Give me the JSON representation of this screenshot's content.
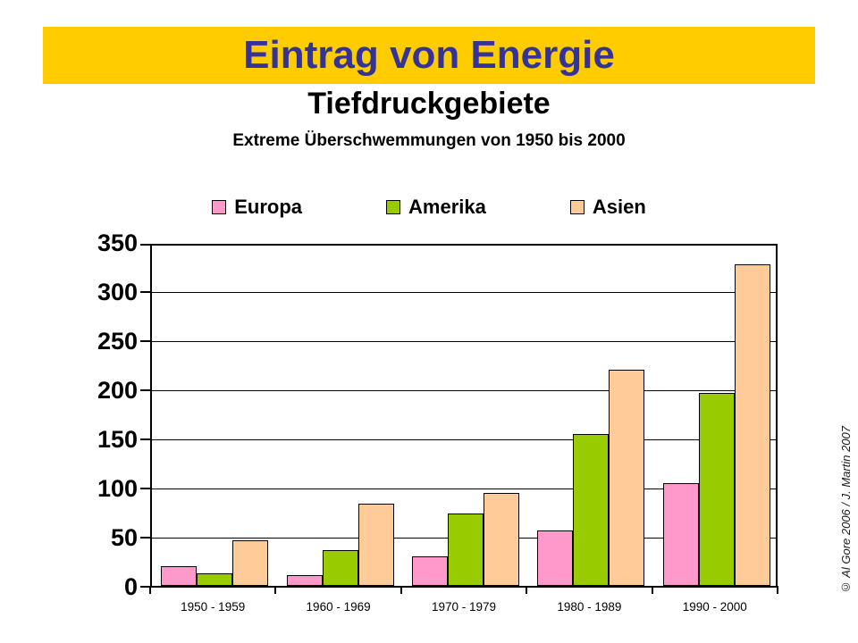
{
  "banner": {
    "title": "Eintrag von Energie",
    "bg_color": "#FFCC00",
    "text_color": "#333399"
  },
  "subtitle": "Tiefdruckgebiete",
  "chart_heading": "Extreme Überschwemmungen von 1950 bis 2000",
  "copyright": "© Al Gore 2006 /  J. Martin 2007",
  "chart_data": {
    "type": "bar",
    "title": "Extreme Überschwemmungen von 1950 bis 2000",
    "categories": [
      "1950 - 1959",
      "1960 - 1969",
      "1970 - 1979",
      "1980 - 1989",
      "1990 - 2000"
    ],
    "series": [
      {
        "name": "Europa",
        "color": "#FF99CC",
        "values": [
          20,
          11,
          30,
          56,
          105
        ]
      },
      {
        "name": "Amerika",
        "color": "#99CC00",
        "values": [
          13,
          36,
          74,
          155,
          196
        ]
      },
      {
        "name": "Asien",
        "color": "#FFCC99",
        "values": [
          46,
          84,
          95,
          220,
          327
        ]
      }
    ],
    "ylim": [
      0,
      350
    ],
    "yticks": [
      0,
      50,
      100,
      150,
      200,
      250,
      300,
      350
    ],
    "grid": true,
    "gridline_color": "#000000",
    "bar_border_color": "#000000",
    "legend_position": "top",
    "xlabel": "",
    "ylabel": ""
  }
}
